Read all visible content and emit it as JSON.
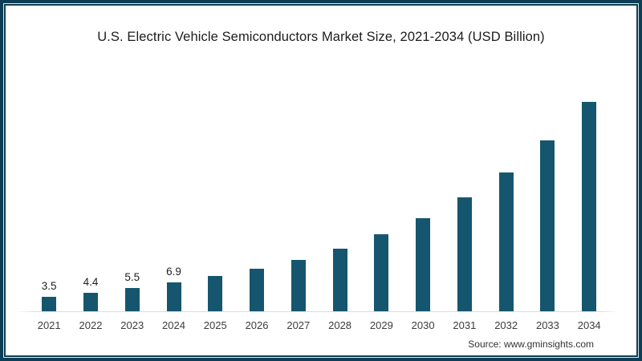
{
  "page": {
    "frame_color": "#0d3e54",
    "frame_inner_line_color": "#d9e7ee",
    "background": "#ffffff"
  },
  "footer": {
    "source": "Source: www.gminsights.com"
  },
  "chart_data": {
    "type": "bar",
    "title": "U.S. Electric Vehicle Semiconductors Market Size, 2021-2034 (USD Billion)",
    "categories": [
      "2021",
      "2022",
      "2023",
      "2024",
      "2025",
      "2026",
      "2027",
      "2028",
      "2029",
      "2030",
      "2031",
      "2032",
      "2033",
      "2034"
    ],
    "values": [
      3.5,
      4.4,
      5.5,
      6.9,
      8.4,
      10.2,
      12.3,
      15.0,
      18.4,
      22.2,
      27.2,
      33.2,
      40.8,
      50.0
    ],
    "data_labels": [
      "3.5",
      "4.4",
      "5.5",
      "6.9",
      "",
      "",
      "",
      "",
      "",
      "",
      "",
      "",
      "",
      ""
    ],
    "xlabel": "",
    "ylabel": "",
    "ylim": [
      0,
      52
    ],
    "grid": false,
    "legend": "none",
    "y_axis_visible": false,
    "bar_color": "#15566e",
    "axis_line_color": "#dddddd",
    "data_label_color": "#1f1f1f",
    "tick_label_color": "#3c3c3c",
    "source": "Source: www.gminsights.com"
  }
}
